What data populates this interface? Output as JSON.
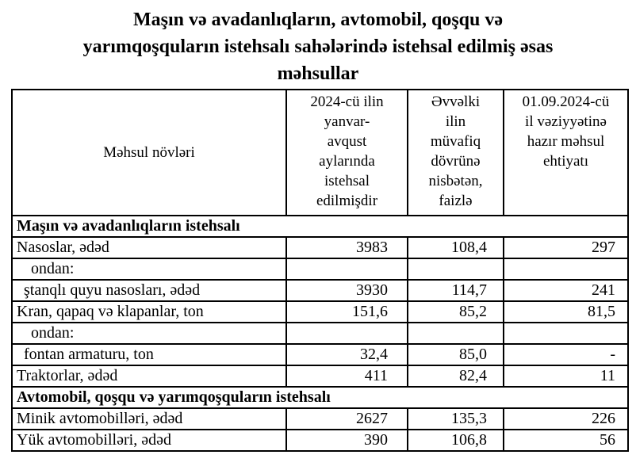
{
  "title": "Maşın və avadanlıqların, avtomobil, qoşqu və\nyarımqoşquların istehsalı sahələrində istehsal edilmiş əsas\nməhsullar",
  "table": {
    "columns": [
      {
        "label": "Məhsul növləri"
      },
      {
        "label": "2024-cü ilin\nyanvar-\navqust\naylarında\nistehsal\nedilmişdir"
      },
      {
        "label": "Əvvəlki\nilin\nmüvafiq\ndövrünə\nnisbətən,\nfaizlə"
      },
      {
        "label": "01.09.2024-cü\nil vəziyyətinə\nhazır məhsul\nehtiyatı"
      }
    ],
    "rows": [
      {
        "type": "section",
        "label": "Maşın və avadanlıqların istehsalı"
      },
      {
        "type": "data",
        "label": "Nasoslar, ədəd",
        "produced": "3983",
        "percent": "108,4",
        "stock": "297"
      },
      {
        "type": "data",
        "label": "ondan:",
        "produced": "",
        "percent": "",
        "stock": ""
      },
      {
        "type": "data",
        "label": "ştanqlı quyu nasosları, ədəd",
        "produced": "3930",
        "percent": "114,7",
        "stock": "241"
      },
      {
        "type": "data",
        "label": "Kran, qapaq və klapanlar, ton",
        "produced": "151,6",
        "percent": "85,2",
        "stock": "81,5"
      },
      {
        "type": "data",
        "label": "ondan:",
        "produced": "",
        "percent": "",
        "stock": ""
      },
      {
        "type": "data",
        "label": "fontan armaturu, ton",
        "produced": "32,4",
        "percent": "85,0",
        "stock": "-"
      },
      {
        "type": "data",
        "label": "Traktorlar, ədəd",
        "produced": "411",
        "percent": "82,4",
        "stock": "11"
      },
      {
        "type": "section",
        "label": "Avtomobil, qoşqu və yarımqoşquların istehsalı"
      },
      {
        "type": "data",
        "label": "Minik avtomobilləri, ədəd",
        "produced": "2627",
        "percent": "135,3",
        "stock": "226"
      },
      {
        "type": "data",
        "label": "Yük avtomobilləri, ədəd",
        "produced": "390",
        "percent": "106,8",
        "stock": "56"
      }
    ]
  },
  "colors": {
    "background": "#ffffff",
    "border": "#000000",
    "text": "#000000"
  }
}
